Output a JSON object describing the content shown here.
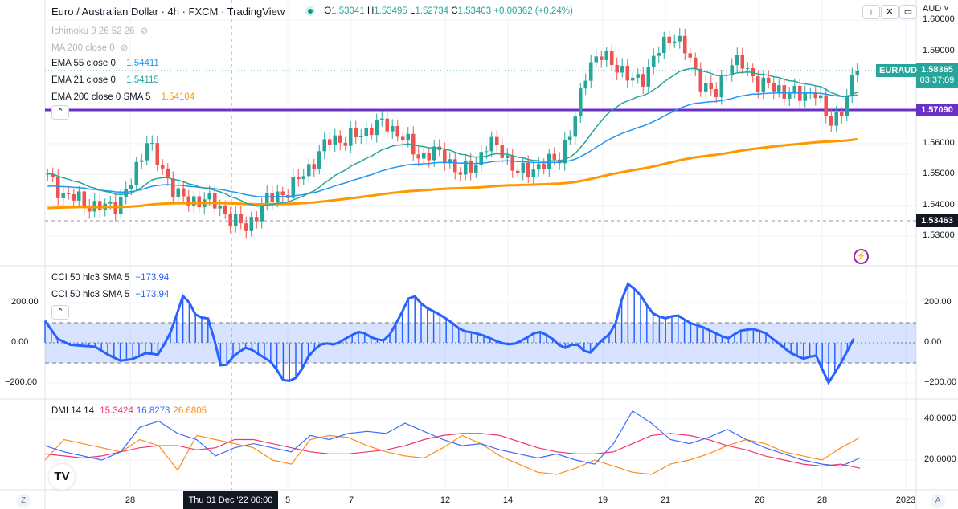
{
  "header": {
    "title": "Euro / Australian Dollar · 4h · FXCM · TradingView",
    "open_label": "O",
    "open": "1.53041",
    "high_label": "H",
    "high": "1.53495",
    "low_label": "L",
    "low": "1.52734",
    "close_label": "C",
    "close": "1.53403",
    "change": "+0.00362 (+0.24%)",
    "currency": "AUD ˅"
  },
  "indicators": [
    {
      "name": "Ichimoku 9 26 52 26",
      "value": "",
      "hidden": true,
      "color": "#b2b5be"
    },
    {
      "name": "MA 200 close 0",
      "value": "",
      "hidden": true,
      "color": "#b2b5be"
    },
    {
      "name": "EMA 55 close 0",
      "value": "1.54411",
      "color": "#2196f3"
    },
    {
      "name": "EMA 21 close 0",
      "value": "1.54115",
      "color": "#26a69a"
    },
    {
      "name": "EMA 200 close 0 SMA 5",
      "value": "1.54104",
      "color": "#ff9800"
    }
  ],
  "cci_legends": [
    {
      "name": "CCI 50 hlc3 SMA 5",
      "value": "−173.94"
    },
    {
      "name": "CCI 50 hlc3 SMA 5",
      "value": "−173.94"
    }
  ],
  "dmi_legend": {
    "name": "DMI 14 14",
    "plus": "15.3424",
    "minus": "16.8273",
    "adx": "26.6805"
  },
  "price_axis": [
    "1.60000",
    "1.59000",
    "1.56000",
    "1.55000",
    "1.54000",
    "1.53000"
  ],
  "price_values": [
    1.6,
    1.59,
    1.56,
    1.55,
    1.54,
    1.53
  ],
  "tags": {
    "symbol": "EURAUD",
    "last": "1.58365",
    "countdown": "03:37:09",
    "level": "1.57090",
    "cross": "1.53463"
  },
  "level_price": 1.5709,
  "last_price": 1.58365,
  "cross_price": 1.53463,
  "cci_axis": [
    "200.00",
    "0.00",
    "−200.00"
  ],
  "dmi_axis": [
    "40.0000",
    "20.0000"
  ],
  "time_axis": [
    "28",
    "5",
    "7",
    "12",
    "14",
    "19",
    "21",
    "26",
    "28",
    "2023"
  ],
  "time_crosshair": "Thu 01 Dec '22   06:00",
  "bottom": {
    "z": "Z",
    "a": "A"
  },
  "colors": {
    "up": "#26a69a",
    "down": "#ef5350",
    "level": "#6a2fc4",
    "cci": "#2962ff",
    "ema21": "#26a69a",
    "ema55": "#2196f3",
    "ema200": "#ff9800",
    "plus": "#f23672",
    "minus": "#3d6bff",
    "adx": "#ff8c1a"
  },
  "price_path": [
    1.549,
    1.544,
    1.542,
    1.54,
    1.539,
    1.541,
    1.548,
    1.562,
    1.551,
    1.545,
    1.54,
    1.543,
    1.539,
    1.536,
    1.532,
    1.54,
    1.543,
    1.545,
    1.55,
    1.556,
    1.562,
    1.561,
    1.563,
    1.566,
    1.566,
    1.562,
    1.556,
    1.557,
    1.556,
    1.55,
    1.553,
    1.56,
    1.558,
    1.55,
    1.552,
    1.553,
    1.556,
    1.565,
    1.586,
    1.588,
    1.586,
    1.58,
    1.582,
    1.59,
    1.596,
    1.589,
    1.58,
    1.575,
    1.587,
    1.585,
    1.58,
    1.578,
    1.577,
    1.575,
    1.578,
    1.566,
    1.572,
    1.5836
  ],
  "cci_path": [
    110,
    20,
    -10,
    -15,
    -20,
    -60,
    -90,
    -80,
    -50,
    -60,
    60,
    250,
    130,
    120,
    -140,
    -60,
    -20,
    -60,
    -100,
    -200,
    -170,
    -50,
    0,
    -10,
    30,
    60,
    20,
    10,
    120,
    250,
    180,
    150,
    110,
    60,
    50,
    30,
    0,
    -10,
    20,
    60,
    30,
    -30,
    0,
    -60,
    10,
    60,
    300,
    250,
    150,
    120,
    140,
    100,
    80,
    50,
    20,
    60,
    70,
    50,
    0,
    -50,
    -80,
    -60,
    -200,
    -100,
    20
  ],
  "dmi_plus": [
    23,
    22,
    21,
    22,
    24,
    26,
    27,
    27,
    25,
    26,
    30,
    30,
    28,
    26,
    24,
    23,
    23,
    24,
    25,
    27,
    30,
    32,
    33,
    33,
    32,
    29,
    26,
    24,
    23,
    23,
    24,
    28,
    32,
    33,
    32,
    30,
    27,
    25,
    22,
    20,
    18,
    17,
    18,
    16
  ],
  "dmi_minus": [
    27,
    24,
    22,
    20,
    24,
    36,
    39,
    33,
    30,
    22,
    26,
    28,
    26,
    24,
    32,
    30,
    33,
    34,
    33,
    38,
    34,
    30,
    27,
    28,
    25,
    23,
    21,
    23,
    20,
    18,
    28,
    44,
    38,
    30,
    28,
    31,
    35,
    30,
    26,
    23,
    20,
    18,
    17,
    21
  ],
  "dmi_adx": [
    20,
    30,
    28,
    26,
    24,
    30,
    27,
    15,
    32,
    30,
    28,
    26,
    20,
    18,
    30,
    32,
    31,
    27,
    24,
    22,
    21,
    26,
    32,
    28,
    22,
    18,
    14,
    13,
    16,
    20,
    17,
    14,
    13,
    18,
    20,
    23,
    27,
    30,
    28,
    24,
    22,
    20,
    26,
    31
  ]
}
